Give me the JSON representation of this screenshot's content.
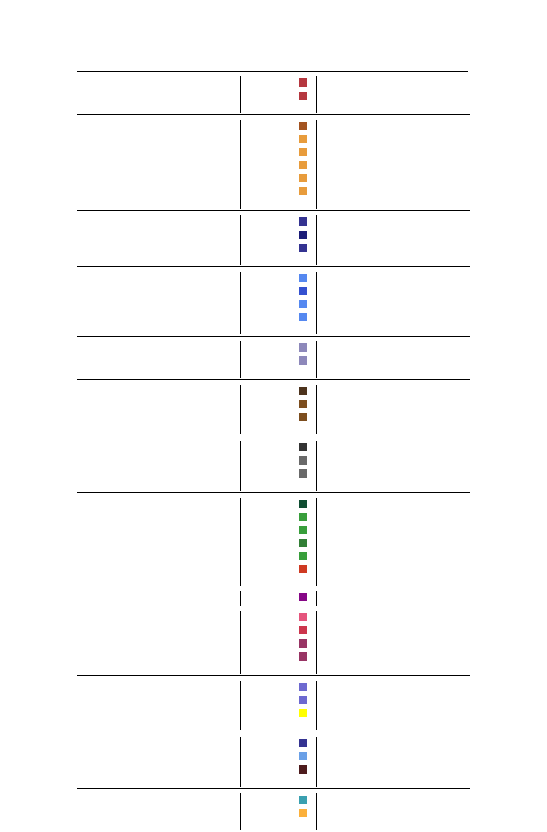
{
  "swatch_groups": [
    {
      "swatches": [
        "#B5373F",
        "#B5373F"
      ]
    },
    {
      "swatches": [
        "#A35320",
        "#E89C3C",
        "#E89C3C",
        "#E89C3C",
        "#E89C3C",
        "#E89C3C"
      ]
    },
    {
      "swatches": [
        "#343391",
        "#1B1C78",
        "#343391"
      ]
    },
    {
      "swatches": [
        "#5588F0",
        "#3451D0",
        "#5588F0",
        "#5588F0"
      ]
    },
    {
      "swatches": [
        "#8D88BA",
        "#8D88BA"
      ]
    },
    {
      "swatches": [
        "#4D331D",
        "#7C4D1E",
        "#7C4D1E"
      ]
    },
    {
      "swatches": [
        "#333333",
        "#696969",
        "#696969"
      ]
    },
    {
      "swatches": [
        "#0F4D31",
        "#389E3B",
        "#389E3B",
        "#327F36",
        "#389E3B",
        "#CF3A22"
      ]
    },
    {
      "swatches": [
        "#860786"
      ]
    },
    {
      "swatches": [
        "#E5557D",
        "#CC364D",
        "#983464",
        "#983464"
      ]
    },
    {
      "swatches": [
        "#6D69D0",
        "#6D69D0",
        "#FFFF00"
      ]
    },
    {
      "swatches": [
        "#343391",
        "#6AA0E7",
        "#4D1B1D"
      ]
    },
    {
      "swatches": [
        "#3AA0B0",
        "#FBB03B"
      ]
    }
  ]
}
